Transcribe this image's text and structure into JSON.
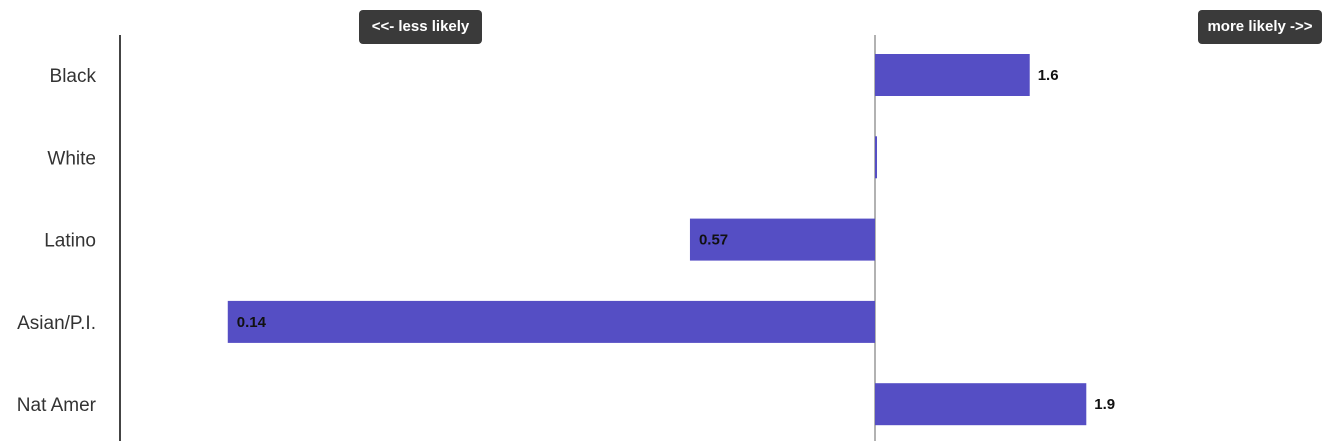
{
  "buttons": {
    "less_likely": "<<- less likely",
    "more_likely": "more likely ->>"
  },
  "chart_data": {
    "type": "bar",
    "orientation": "horizontal",
    "scale": "log",
    "baseline": 1,
    "categories": [
      "Black",
      "White",
      "Latino",
      "Asian/P.I.",
      "Nat Amer"
    ],
    "values": [
      1.6,
      1.0,
      0.57,
      0.14,
      1.9
    ],
    "value_labels": [
      "1.6",
      "",
      "0.57",
      "0.14",
      "1.9"
    ],
    "bar_color": "#554ec4",
    "grid": false,
    "legend": "none"
  }
}
